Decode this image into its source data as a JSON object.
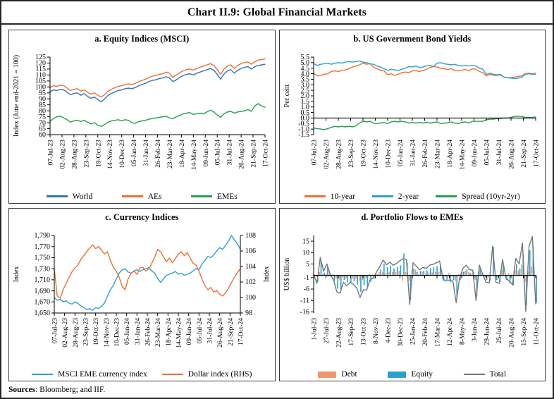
{
  "page": {
    "title": "Chart II.9: Global Financial Markets",
    "sources_bold": "Sources",
    "sources_rest": ": Bloomberg; and IIF."
  },
  "colors": {
    "world_blue": "#2E75B6",
    "ae_orange": "#ED7031",
    "eme_green": "#21A04F",
    "cyan_blue": "#2AA0CE",
    "debt_salmon": "#F0966C",
    "total_gray": "#767676"
  },
  "chart_data": [
    {
      "key": "a",
      "type": "line",
      "title": "a. Equity Indices (MSCI)",
      "ylabel": "Index (June end-2021 = 100)",
      "ylim": [
        60,
        125
      ],
      "zero_axis": false,
      "yticks": {
        "labels": [
          "125",
          "120",
          "115",
          "110",
          "105",
          "100",
          "95",
          "90",
          "85",
          "80",
          "75",
          "70",
          "65",
          "60"
        ],
        "values": [
          125,
          120,
          115,
          110,
          105,
          100,
          95,
          90,
          85,
          80,
          75,
          70,
          65,
          60
        ]
      },
      "xticklabels": [
        "07-Jul-23",
        "02-Aug-23",
        "28-Aug-23",
        "23-Sep-23",
        "19-Oct-23",
        "14-Nov-23",
        "10-Dec-23",
        "05-Jan-24",
        "31-Jan-24",
        "26-Feb-24",
        "23-Mar-24",
        "18-Apr-24",
        "14-May-24",
        "09-Jun-24",
        "05-Jul-24",
        "31-Jul-24",
        "26-Aug-24",
        "21-Sep-24",
        "17-Oct-24"
      ],
      "series": [
        {
          "name": "World",
          "kind": "line",
          "color": "#2E75B6",
          "values": [
            96,
            97.5,
            97,
            98,
            97.5,
            95.5,
            93.5,
            94.5,
            95,
            93,
            94.5,
            92,
            90.5,
            91.5,
            89.5,
            87.5,
            90,
            93,
            94.5,
            96,
            97,
            97.5,
            98.5,
            99,
            98.5,
            99.5,
            101,
            102,
            103,
            104.5,
            105.5,
            106,
            107,
            107.5,
            108.5,
            107.5,
            104.5,
            106,
            108,
            109.5,
            110.5,
            111,
            110,
            111.5,
            112.5,
            113.5,
            114.5,
            115.5,
            114,
            110.5,
            106.5,
            111,
            113.5,
            114.5,
            111.5,
            114,
            115.5,
            116.5,
            117,
            115,
            117,
            118,
            118.5,
            119
          ]
        },
        {
          "name": "AEs",
          "kind": "line",
          "color": "#ED7031",
          "values": [
            99.5,
            101,
            100.5,
            101.5,
            101,
            99,
            97,
            98,
            98.5,
            96.5,
            97.5,
            95.5,
            94,
            95,
            93,
            91.5,
            93.5,
            96.5,
            98,
            99.5,
            100.5,
            101,
            102,
            102.5,
            102,
            103,
            104.5,
            105.5,
            106.5,
            108,
            109,
            109.5,
            110.5,
            111,
            112.5,
            111.5,
            108,
            110,
            112,
            113.5,
            114.5,
            115,
            114,
            115.5,
            116.5,
            117.5,
            118.5,
            119.5,
            118,
            114.5,
            110.5,
            115,
            117.5,
            118.5,
            115.5,
            118,
            119.5,
            120.5,
            121,
            119,
            121,
            122.5,
            123,
            123.5
          ]
        },
        {
          "name": "EMEs",
          "kind": "line",
          "color": "#21A04F",
          "values": [
            71,
            73.5,
            75,
            75.5,
            74,
            72.5,
            70.5,
            71.5,
            72,
            71,
            72,
            70.5,
            69,
            70,
            68,
            67,
            68.5,
            70.5,
            71.5,
            72,
            72.5,
            71.5,
            72.5,
            72,
            70,
            69.5,
            71,
            71.5,
            72,
            73,
            73.5,
            74,
            74.5,
            75,
            75.5,
            74,
            73.5,
            75,
            76,
            77.5,
            78,
            78.5,
            77,
            77.5,
            78,
            77.5,
            79,
            80.5,
            79,
            76.5,
            74.5,
            77.5,
            79,
            79.5,
            78,
            79,
            79.5,
            80,
            81,
            79.5,
            84,
            86,
            84,
            83
          ]
        }
      ]
    },
    {
      "key": "b",
      "type": "line",
      "title": "b. US  Government Bond Yields",
      "ylabel": "Per cent",
      "ylim": [
        -1.5,
        5.5
      ],
      "zero_axis": true,
      "yticks": {
        "labels": [
          "5.5",
          "5.0",
          "4.5",
          "4.0",
          "3.5",
          "3.0",
          "2.5",
          "2.0",
          "1.5",
          "1.0",
          "0.5",
          "0.0",
          "-0.5",
          "-1.0",
          "-1.5"
        ],
        "values": [
          5.5,
          5,
          4.5,
          4,
          3.5,
          3,
          2.5,
          2,
          1.5,
          1,
          0.5,
          0,
          -0.5,
          -1,
          -1.5
        ]
      },
      "xticklabels": [
        "07-Jul-23",
        "02-Aug-23",
        "28-Aug-23",
        "23-Sep-23",
        "19-Oct-23",
        "14-Nov-23",
        "10-Dec-23",
        "05-Jan-24",
        "31-Jan-24",
        "26-Feb-24",
        "23-Mar-24",
        "18-Apr-24",
        "14-May-24",
        "09-Jun-24",
        "05-Jul-24",
        "31-Jul-24",
        "26-Aug-24",
        "21-Sep-24",
        "17-Oct-24"
      ],
      "series": [
        {
          "name": "10-year",
          "kind": "line",
          "color": "#ED7031",
          "values": [
            4.05,
            3.8,
            3.85,
            3.95,
            4,
            4.2,
            4.25,
            4.2,
            4.3,
            4.35,
            4.45,
            4.6,
            4.7,
            4.8,
            4.95,
            4.85,
            4.9,
            4.6,
            4.45,
            4.3,
            4.25,
            3.9,
            4,
            3.85,
            3.95,
            4.1,
            4.15,
            4.1,
            4.25,
            4.3,
            4.2,
            4.3,
            4.4,
            4.55,
            4.65,
            4.6,
            4.5,
            4.45,
            4.4,
            4.45,
            4.3,
            4.25,
            4.3,
            4.4,
            4.25,
            4.45,
            4.4,
            4.2,
            4.1,
            3.8,
            3.95,
            3.85,
            3.85,
            3.9,
            3.7,
            3.65,
            3.65,
            3.7,
            3.75,
            3.8,
            4,
            4.05,
            4,
            4.05
          ]
        },
        {
          "name": "2-year",
          "kind": "line",
          "color": "#2AA0CE",
          "values": [
            4.9,
            4.75,
            4.85,
            4.9,
            4.95,
            4.85,
            4.95,
            5,
            4.95,
            5.05,
            5.1,
            5.05,
            5.1,
            5.15,
            5.05,
            5,
            4.9,
            4.85,
            4.7,
            4.6,
            4.45,
            4.3,
            4.4,
            4.35,
            4.3,
            4.4,
            4.5,
            4.65,
            4.6,
            4.7,
            4.55,
            4.6,
            4.7,
            4.75,
            4.65,
            4.95,
            5,
            4.9,
            4.85,
            4.8,
            4.85,
            4.75,
            4.7,
            4.75,
            4.7,
            4.75,
            4.7,
            4.5,
            4.4,
            3.95,
            4.05,
            3.95,
            3.9,
            3.95,
            3.7,
            3.65,
            3.6,
            3.55,
            3.6,
            3.65,
            3.95,
            4,
            3.95,
            3.95
          ]
        },
        {
          "name": "Spread (10yr-2yr)",
          "kind": "line",
          "color": "#21A04F",
          "values": [
            -0.9,
            -0.95,
            -1,
            -1.05,
            -0.95,
            -0.85,
            -0.75,
            -0.8,
            -0.75,
            -0.8,
            -0.75,
            -0.8,
            -0.7,
            -0.45,
            -0.3,
            -0.35,
            -0.3,
            -0.45,
            -0.5,
            -0.45,
            -0.4,
            -0.5,
            -0.35,
            -0.3,
            -0.35,
            -0.3,
            -0.35,
            -0.45,
            -0.4,
            -0.45,
            -0.4,
            -0.45,
            -0.4,
            -0.45,
            -0.4,
            -0.35,
            -0.5,
            -0.45,
            -0.45,
            -0.35,
            -0.45,
            -0.5,
            -0.4,
            -0.35,
            -0.45,
            -0.3,
            -0.3,
            -0.3,
            -0.3,
            -0.15,
            -0.1,
            -0.1,
            -0.05,
            -0.05,
            0,
            0,
            0.05,
            0.15,
            0.15,
            0.15,
            0.05,
            0.05,
            0.05,
            0.1
          ]
        }
      ]
    },
    {
      "key": "c",
      "type": "line",
      "title": "c. Currency Indices",
      "ylabel": "Index",
      "ylabel_right": "Index",
      "ylim": [
        1650,
        1790
      ],
      "ylim_right": [
        98,
        108
      ],
      "zero_axis": false,
      "yticks": {
        "labels": [
          "1,790",
          "1,770",
          "1,750",
          "1,730",
          "1,710",
          "1,690",
          "1,670",
          "1,650"
        ],
        "values": [
          1790,
          1770,
          1750,
          1730,
          1710,
          1690,
          1670,
          1650
        ]
      },
      "yticks_right": {
        "labels": [
          "108",
          "106",
          "104",
          "102",
          "100",
          "98"
        ],
        "values": [
          108,
          106,
          104,
          102,
          100,
          98
        ]
      },
      "xticklabels": [
        "07-Jul-23",
        "02-Aug-23",
        "28-Aug-23",
        "23-Sep-23",
        "19-Oct-23",
        "14-Nov-23",
        "10-Dec-23",
        "05-Jan-24",
        "31-Jan-24",
        "26-Feb-24",
        "23-Mar-24",
        "18-Apr-24",
        "14-May-24",
        "09-Jun-24",
        "05-Jul-24",
        "31-Jul-24",
        "26-Aug-24",
        "21-Sep-24",
        "17-Oct-24"
      ],
      "series": [
        {
          "name": "MSCI EME currency index",
          "kind": "line",
          "color": "#2AA0CE",
          "values": [
            1678,
            1673,
            1675,
            1670,
            1672,
            1668,
            1666,
            1670,
            1667,
            1663,
            1660,
            1656,
            1658,
            1655,
            1660,
            1658,
            1662,
            1668,
            1680,
            1692,
            1700,
            1712,
            1722,
            1728,
            1730,
            1724,
            1722,
            1726,
            1728,
            1725,
            1728,
            1730,
            1732,
            1726,
            1722,
            1712,
            1705,
            1712,
            1718,
            1720,
            1722,
            1725,
            1720,
            1722,
            1718,
            1720,
            1722,
            1726,
            1730,
            1728,
            1738,
            1745,
            1752,
            1750,
            1755,
            1762,
            1768,
            1765,
            1772,
            1780,
            1790,
            1782,
            1775,
            1765
          ]
        },
        {
          "name": "Dollar index (RHS)",
          "kind": "line",
          "axis": "right",
          "color": "#ED7031",
          "values": [
            103.7,
            100.2,
            99.9,
            101,
            101.8,
            102.6,
            103.3,
            103.8,
            104.2,
            104.9,
            105.4,
            105.9,
            106.4,
            106.8,
            106.3,
            106.6,
            106.1,
            105.6,
            105.9,
            104.8,
            103.9,
            103.4,
            102.6,
            101.4,
            101,
            102.4,
            103.1,
            103.4,
            103,
            103.8,
            103.9,
            103.4,
            103.7,
            104.4,
            105.2,
            106.2,
            105.9,
            105.2,
            104.6,
            105.1,
            104.5,
            105,
            105.6,
            105.9,
            105.4,
            105.8,
            105.1,
            104.4,
            104.2,
            103.4,
            102.4,
            101.5,
            101,
            101.3,
            100.7,
            100.9,
            100.4,
            100.2,
            100.6,
            101.2,
            101.9,
            102.6,
            103.2,
            103.7
          ]
        }
      ]
    },
    {
      "key": "d",
      "type": "bar",
      "title": "d. Portfolio Flows to EMEs",
      "ylabel": "US$ billion",
      "ylim": [
        -16.5,
        17.5
      ],
      "zero_axis": true,
      "yticks": {
        "labels": [
          "15",
          "10",
          "5",
          "-1",
          "-6",
          "-11",
          "-16"
        ],
        "values": [
          15,
          10,
          5,
          -1,
          -6,
          -11,
          -16
        ]
      },
      "xticklabels": [
        "1-Jul-23",
        "27-Jul-23",
        "22-Aug-23",
        "17-Sep-23",
        "13-Oct-23",
        "8-Nov-23",
        "4-Dec-23",
        "30-Dec-23",
        "25-Jan-24",
        "20-Feb-24",
        "17-Mar-24",
        "12-Apr-24",
        "8-May-24",
        "3-Jun-24",
        "29-Jun-24",
        "25-Jul-24",
        "20-Aug-24",
        "15-Sep-24",
        "11-Oct-24"
      ],
      "series": [
        {
          "name": "Debt",
          "kind": "bar",
          "color": "#F0966C",
          "values": [
            0.2,
            -0.7,
            1.4,
            0.6,
            0.8,
            1,
            0.5,
            -1.5,
            -1.8,
            -1,
            -1.5,
            0.5,
            -1.5,
            -1.5,
            -2.5,
            -2,
            -1.5,
            0.8,
            0.5,
            1,
            1.5,
            1.5,
            1,
            1.5,
            1.4,
            1.5,
            2,
            -2.3,
            1.5,
            -2.3,
            2.5,
            2.5,
            0.5,
            1.5,
            0.8,
            1.3,
            1.3,
            1.5,
            1.5,
            1,
            -0.5,
            1,
            -0.5,
            -2.5,
            0.5,
            1.5,
            2,
            1.5,
            0.8,
            -2,
            1.5,
            1,
            -1,
            -0.7,
            0.2,
            -1,
            -0.5,
            2.5,
            1,
            1,
            0.5,
            2.5,
            2,
            4.7,
            -2.8,
            1.8,
            4,
            -0.5
          ]
        },
        {
          "name": "Equity",
          "kind": "bar",
          "color": "#2AA0CE",
          "values": [
            0.3,
            -2.8,
            6.5,
            1.2,
            4.2,
            -0.5,
            -2.5,
            -5.8,
            -6,
            -2,
            -3,
            -3.5,
            -2.5,
            -4,
            -7.2,
            -4.3,
            -5,
            -2.8,
            -1.5,
            0.5,
            2.5,
            5.2,
            3.6,
            4.3,
            3,
            3.7,
            4.4,
            9.6,
            5.5,
            -10.5,
            3,
            1.5,
            2,
            2,
            2.2,
            3.2,
            3.5,
            4,
            4.8,
            -2.5,
            -2,
            -3,
            -2,
            -9.5,
            -2,
            1.5,
            2.5,
            1,
            1.5,
            -9,
            3,
            -0.5,
            -2,
            -2.5,
            12.5,
            -2,
            -3,
            4.5,
            -2,
            -3.5,
            -4.5,
            5,
            3,
            9.5,
            -13,
            11,
            13,
            -12
          ]
        },
        {
          "name": "Total",
          "kind": "line",
          "color": "#767676",
          "values": [
            0.5,
            -3.5,
            7.9,
            1.8,
            5,
            0.5,
            -2,
            -7.3,
            -7.8,
            -3,
            -4.5,
            -3,
            -4,
            -5.5,
            -9.7,
            -6.3,
            -6.5,
            -2,
            -1,
            1.5,
            4,
            6.7,
            4.6,
            5.8,
            4.4,
            5.2,
            6.4,
            7.3,
            7,
            -12.8,
            5.5,
            4,
            2.5,
            3.5,
            3,
            4.5,
            4.8,
            5.5,
            6.3,
            -1.5,
            -2.5,
            -2,
            -2.5,
            -12,
            -1.5,
            3,
            4.5,
            2.5,
            2.3,
            -11,
            4.5,
            0.5,
            -3,
            -3.2,
            12.7,
            -3,
            -3.5,
            7,
            -1,
            -2.5,
            -4,
            7.5,
            5,
            14.2,
            -15.8,
            12.8,
            17,
            -12.5
          ]
        }
      ]
    }
  ]
}
